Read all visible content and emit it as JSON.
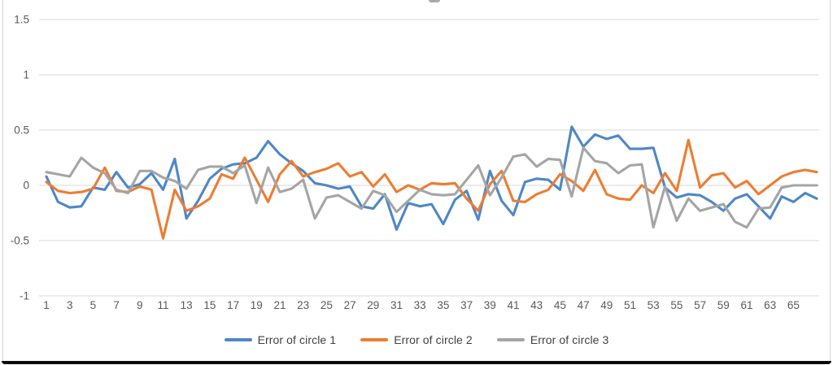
{
  "chart_data": {
    "type": "line",
    "title": "",
    "xlabel": "",
    "ylabel": "",
    "x_range_points": 67,
    "x_tick_labels": [
      "1",
      "3",
      "5",
      "7",
      "9",
      "11",
      "13",
      "15",
      "17",
      "19",
      "21",
      "23",
      "25",
      "27",
      "29",
      "31",
      "33",
      "35",
      "37",
      "39",
      "41",
      "43",
      "45",
      "47",
      "49",
      "51",
      "53",
      "55",
      "57",
      "59",
      "61",
      "63",
      "65"
    ],
    "y_ticks": [
      {
        "label": "1.5",
        "value": 1.5
      },
      {
        "label": "1",
        "value": 1
      },
      {
        "label": "0.5",
        "value": 0.5
      },
      {
        "label": "0",
        "value": 0
      },
      {
        "label": "-0.5",
        "value": -0.5
      },
      {
        "label": "-1",
        "value": -1
      }
    ],
    "ylim": [
      -1,
      1.5
    ],
    "grid": "horizontal",
    "legend_position": "bottom",
    "colors": {
      "series1": "#4e87c7",
      "series2": "#ed7d31",
      "series3": "#a5a5a5",
      "gridline": "#d9d9d9",
      "tick_text": "#595959"
    },
    "series": [
      {
        "name": "Error of circle 1",
        "color": "#4e87c7",
        "values": [
          0.08,
          -0.15,
          -0.2,
          -0.19,
          -0.02,
          -0.04,
          0.12,
          -0.02,
          0.01,
          0.11,
          -0.04,
          0.24,
          -0.3,
          -0.14,
          0.06,
          0.15,
          0.19,
          0.2,
          0.25,
          0.4,
          0.28,
          0.2,
          0.13,
          0.02,
          0.0,
          -0.03,
          -0.01,
          -0.19,
          -0.21,
          -0.08,
          -0.4,
          -0.16,
          -0.19,
          -0.17,
          -0.35,
          -0.13,
          -0.05,
          -0.31,
          0.13,
          -0.14,
          -0.27,
          0.03,
          0.06,
          0.05,
          -0.04,
          0.53,
          0.35,
          0.46,
          0.42,
          0.45,
          0.33,
          0.33,
          0.34,
          -0.02,
          -0.11,
          -0.08,
          -0.09,
          -0.15,
          -0.23,
          -0.12,
          -0.08,
          -0.19,
          -0.3,
          -0.1,
          -0.15,
          -0.07,
          -0.12
        ]
      },
      {
        "name": "Error of circle 2",
        "color": "#ed7d31",
        "values": [
          0.03,
          -0.05,
          -0.07,
          -0.06,
          -0.03,
          0.16,
          -0.05,
          -0.06,
          -0.01,
          -0.04,
          -0.48,
          -0.04,
          -0.23,
          -0.19,
          -0.12,
          0.1,
          0.06,
          0.25,
          0.05,
          -0.15,
          0.1,
          0.22,
          0.08,
          0.12,
          0.15,
          0.2,
          0.08,
          0.12,
          -0.01,
          0.1,
          -0.06,
          0.0,
          -0.04,
          0.02,
          0.01,
          0.02,
          -0.12,
          -0.23,
          0.01,
          0.13,
          -0.14,
          -0.15,
          -0.08,
          -0.04,
          0.1,
          0.04,
          -0.05,
          0.14,
          -0.08,
          -0.12,
          -0.13,
          0.0,
          -0.07,
          0.11,
          -0.05,
          0.41,
          -0.02,
          0.09,
          0.11,
          -0.02,
          0.04,
          -0.08,
          0.0,
          0.08,
          0.12,
          0.14,
          0.12
        ]
      },
      {
        "name": "Error of circle 3",
        "color": "#a5a5a5",
        "values": [
          0.12,
          0.1,
          0.08,
          0.25,
          0.16,
          0.11,
          -0.04,
          -0.07,
          0.13,
          0.13,
          0.07,
          0.04,
          -0.03,
          0.14,
          0.17,
          0.17,
          0.11,
          0.18,
          -0.16,
          0.16,
          -0.06,
          -0.03,
          0.05,
          -0.3,
          -0.11,
          -0.09,
          -0.15,
          -0.21,
          -0.05,
          -0.09,
          -0.24,
          -0.14,
          -0.04,
          -0.08,
          -0.09,
          -0.08,
          0.05,
          0.18,
          -0.09,
          0.07,
          0.26,
          0.28,
          0.17,
          0.24,
          0.23,
          -0.1,
          0.34,
          0.22,
          0.2,
          0.11,
          0.18,
          0.19,
          -0.38,
          -0.01,
          -0.32,
          -0.12,
          -0.23,
          -0.2,
          -0.17,
          -0.33,
          -0.38,
          -0.21,
          -0.2,
          -0.02,
          0.0,
          0.0,
          0.0
        ]
      }
    ]
  },
  "legend": {
    "items": [
      {
        "label": "Error of circle 1"
      },
      {
        "label": "Error of circle 2"
      },
      {
        "label": "Error of circle 3"
      }
    ]
  }
}
